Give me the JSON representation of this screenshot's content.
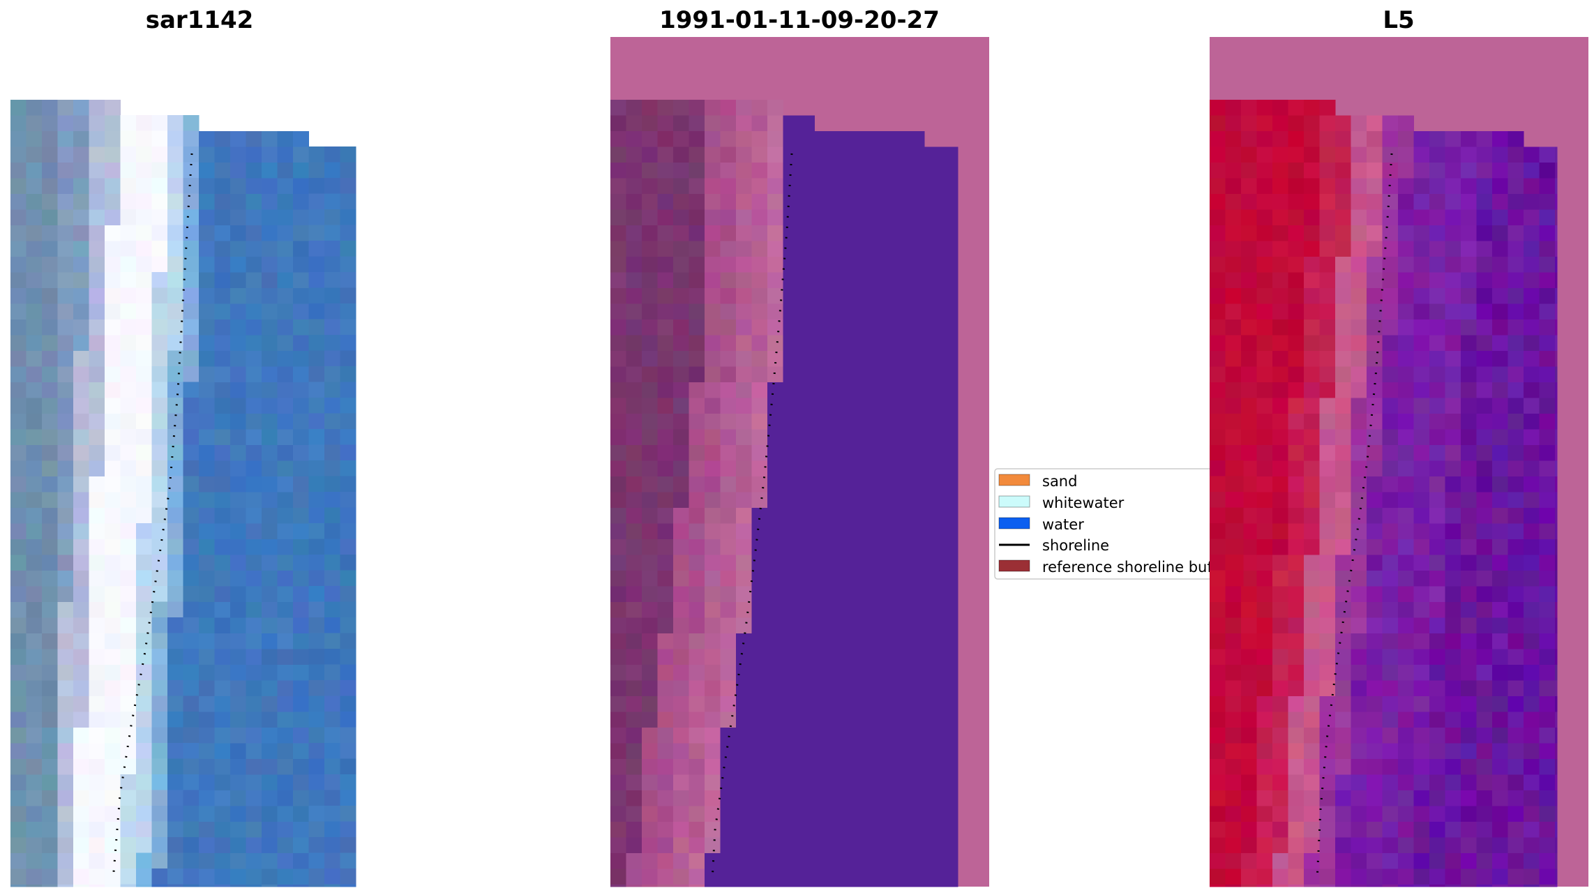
{
  "chart_data": [
    {
      "type": "heatmap",
      "panel": "left",
      "title": "sar1142",
      "colors": {
        "sand_column": "#e8e6f2",
        "whitewater": "#f6f8ff",
        "water": "#3f78bd",
        "water_dark": "#3a6db3",
        "shoreline": "#000000"
      }
    },
    {
      "type": "heatmap",
      "panel": "middle",
      "title": "1991-01-11-09-20-27",
      "colors": {
        "background": "#bd6497",
        "dark_band": "#7a356f",
        "mid_band": "#a9508a",
        "light_band": "#c06a9e",
        "water": "#552298",
        "shoreline": "#000000"
      }
    },
    {
      "type": "heatmap",
      "panel": "right",
      "title": "L5",
      "colors": {
        "background": "#bd6497",
        "red_band": "#c2083a",
        "pink_band": "#c8578d",
        "purple": "#7a1fa6",
        "dark_purple": "#5c0a9a",
        "shoreline": "#000000"
      }
    }
  ],
  "legend": {
    "items": [
      {
        "label": "sand",
        "color": "#f28a3c",
        "kind": "patch"
      },
      {
        "label": "whitewater",
        "color": "#ccfbfb",
        "kind": "patch"
      },
      {
        "label": "water",
        "color": "#0b5ff0",
        "kind": "patch"
      },
      {
        "label": "shoreline",
        "color": "#000000",
        "kind": "line"
      },
      {
        "label": "reference shoreline buf",
        "color": "#9b2f35",
        "kind": "patch"
      }
    ]
  }
}
